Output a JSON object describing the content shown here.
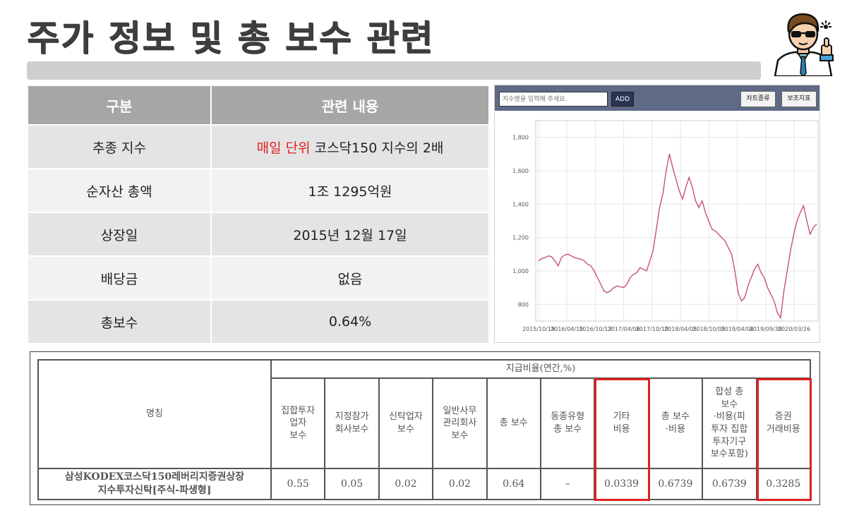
{
  "title": "주가 정보 및 총 보수 관련",
  "mascot_icon": "businessman-thumbs-up-icon",
  "info_table": {
    "headers": [
      "구분",
      "관련 내용"
    ],
    "rows": [
      {
        "label": "추종 지수",
        "value_highlight": "매일 단위",
        "value": " 코스닥150 지수의 2배"
      },
      {
        "label": "순자산 총액",
        "value": "1조 1295억원"
      },
      {
        "label": "상장일",
        "value": "2015년 12월 17일"
      },
      {
        "label": "배당금",
        "value": "없음"
      },
      {
        "label": "총보수",
        "value": "0.64%"
      }
    ],
    "highlight_color": "#e02020"
  },
  "chart_panel": {
    "search_placeholder": "지수명을 입력해 주세요.",
    "add_label": "ADD",
    "chart_type_label": "차트종류",
    "aux_indicator_label": "보조지표"
  },
  "chart_data": {
    "type": "line",
    "title": "",
    "xlabel": "",
    "ylabel": "",
    "ylim": [
      700,
      1900
    ],
    "yticks": [
      800,
      1000,
      1200,
      1400,
      1600,
      1800
    ],
    "ytick_labels": [
      "800",
      "1,000",
      "1,200",
      "1,400",
      "1,600",
      "1,800"
    ],
    "xtick_labels": [
      "2015/10/19",
      "2016/04/15",
      "2016/10/13",
      "2017/04/06",
      "2017/10/10",
      "2018/04/05",
      "2018/10/05",
      "2019/04/04",
      "2019/09/30",
      "2020/03/26"
    ],
    "grid": true,
    "line_color": "#c8507a",
    "series": [
      {
        "values": [
          1060,
          1075,
          1080,
          1090,
          1085,
          1060,
          1030,
          1080,
          1095,
          1100,
          1090,
          1080,
          1075,
          1070,
          1060,
          1040,
          1030,
          1000,
          960,
          920,
          880,
          870,
          880,
          900,
          910,
          905,
          900,
          920,
          960,
          980,
          990,
          1020,
          1010,
          1000,
          1060,
          1120,
          1250,
          1380,
          1460,
          1600,
          1700,
          1620,
          1550,
          1480,
          1430,
          1500,
          1560,
          1500,
          1420,
          1380,
          1420,
          1350,
          1300,
          1250,
          1240,
          1220,
          1200,
          1180,
          1140,
          1100,
          1000,
          870,
          820,
          840,
          910,
          960,
          1010,
          1040,
          990,
          960,
          900,
          860,
          820,
          750,
          720,
          880,
          1000,
          1120,
          1220,
          1300,
          1350,
          1390,
          1300,
          1220,
          1260,
          1280
        ]
      }
    ]
  },
  "fee_table": {
    "group_header": "지급비율(연간,%)",
    "name_header": "명칭",
    "columns": [
      "집합투자\n업자\n보수",
      "지정참가\n회사보수",
      "신탁업자\n보수",
      "일반사무\n관리회사\n보수",
      "총 보수",
      "동종유형\n총 보수",
      "기타\n비용",
      "총 보수\n·비용",
      "합성 총\n보수\n·비용(피\n투자 집합\n투자기구\n보수포함)",
      "증권\n거래비용"
    ],
    "fund_name": "삼성KODEX코스닥150레버리지증권상장\n지수투자신탁[주식-파생형]",
    "values": [
      "0.55",
      "0.05",
      "0.02",
      "0.02",
      "0.64",
      "–",
      "0.0339",
      "0.6739",
      "0.6739",
      "0.3285"
    ],
    "highlight_color": "#e02020"
  }
}
